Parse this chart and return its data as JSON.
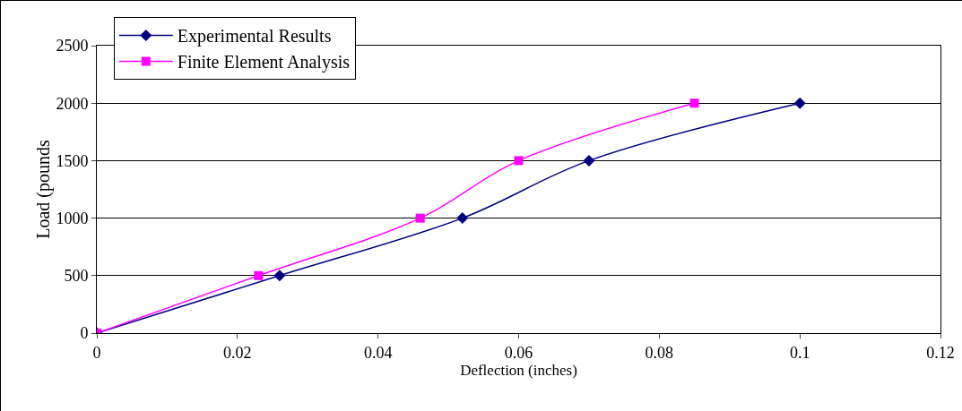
{
  "chart_data": {
    "type": "line",
    "xlabel": "Deflection (inches)",
    "ylabel": "Load (pounds",
    "xlim": [
      0,
      0.12
    ],
    "xticks": [
      0,
      0.02,
      0.04,
      0.06,
      0.08,
      0.1,
      0.12
    ],
    "ylim": [
      0,
      2500
    ],
    "yticks": [
      0,
      500,
      1000,
      1500,
      2000,
      2500
    ],
    "grid": "y",
    "legend": "top left",
    "series": [
      {
        "name": "Experimental Results",
        "color": "#000080",
        "marker": "diamond",
        "x": [
          0,
          0.026,
          0.052,
          0.07,
          0.1
        ],
        "values": [
          0,
          500,
          1000,
          1500,
          2000
        ]
      },
      {
        "name": "Finite Element Analysis",
        "color": "#ff00ff",
        "marker": "square",
        "x": [
          0,
          0.023,
          0.046,
          0.06,
          0.085
        ],
        "values": [
          0,
          500,
          1000,
          1500,
          2000
        ]
      }
    ]
  }
}
